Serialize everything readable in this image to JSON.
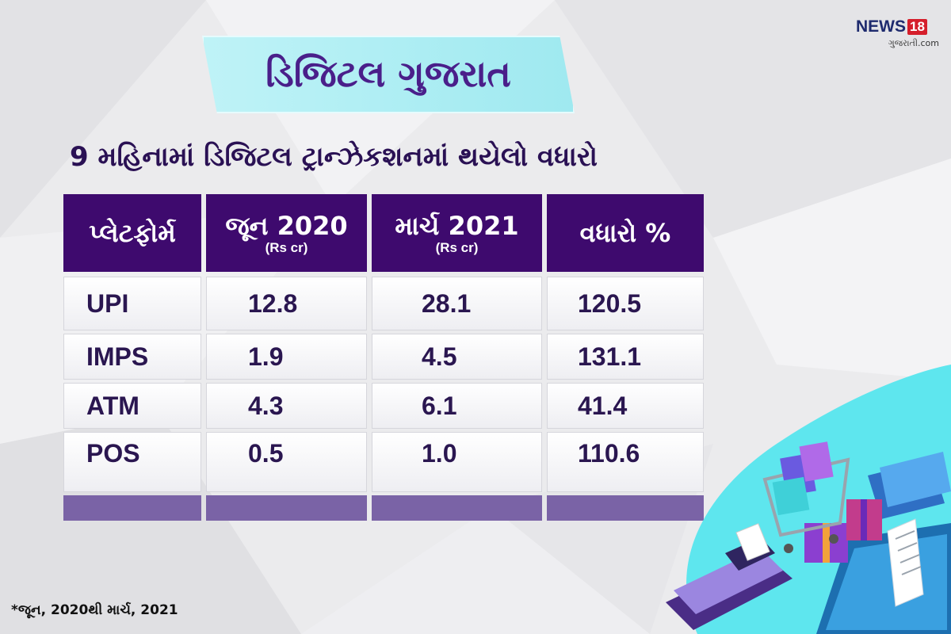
{
  "title": "ડિજિટલ ગુજરાત",
  "subtitle": "9 મહિનામાં ડિજિટલ ટ્રાન્ઝેકશનમાં થયેલો વધારો",
  "logo": {
    "brand": "NEWS",
    "badge": "18",
    "sub": "ગુજરાતી.com"
  },
  "table": {
    "headers": [
      {
        "label": "પ્લેટફોર્મ",
        "unit": ""
      },
      {
        "label": "જૂન 2020",
        "unit": "(Rs cr)"
      },
      {
        "label": "માર્ચ 2021",
        "unit": "(Rs cr)"
      },
      {
        "label": "વધારો %",
        "unit": ""
      }
    ],
    "rows": [
      [
        "UPI",
        "12.8",
        "28.1",
        "120.5"
      ],
      [
        "IMPS",
        "1.9",
        "4.5",
        "131.1"
      ],
      [
        "ATM",
        "4.3",
        "6.1",
        "41.4"
      ],
      [
        "POS",
        "0.5",
        "1.0",
        "110.6"
      ]
    ]
  },
  "footnote": "*જૂન, 2020થી માર્ચ, 2021",
  "colors": {
    "header_bg": "#3e0a6e",
    "title_bg": "#9fe9f0",
    "title_text": "#4a1f8a",
    "footer_row": "#7a63a6",
    "accent_cyan": "#5ee6ee"
  },
  "icons": [
    "shopping-cart-icon",
    "shopping-bag-icon",
    "gift-box-icon",
    "credit-card-icon",
    "card-terminal-icon",
    "receipt-icon",
    "smartphone-icon"
  ]
}
